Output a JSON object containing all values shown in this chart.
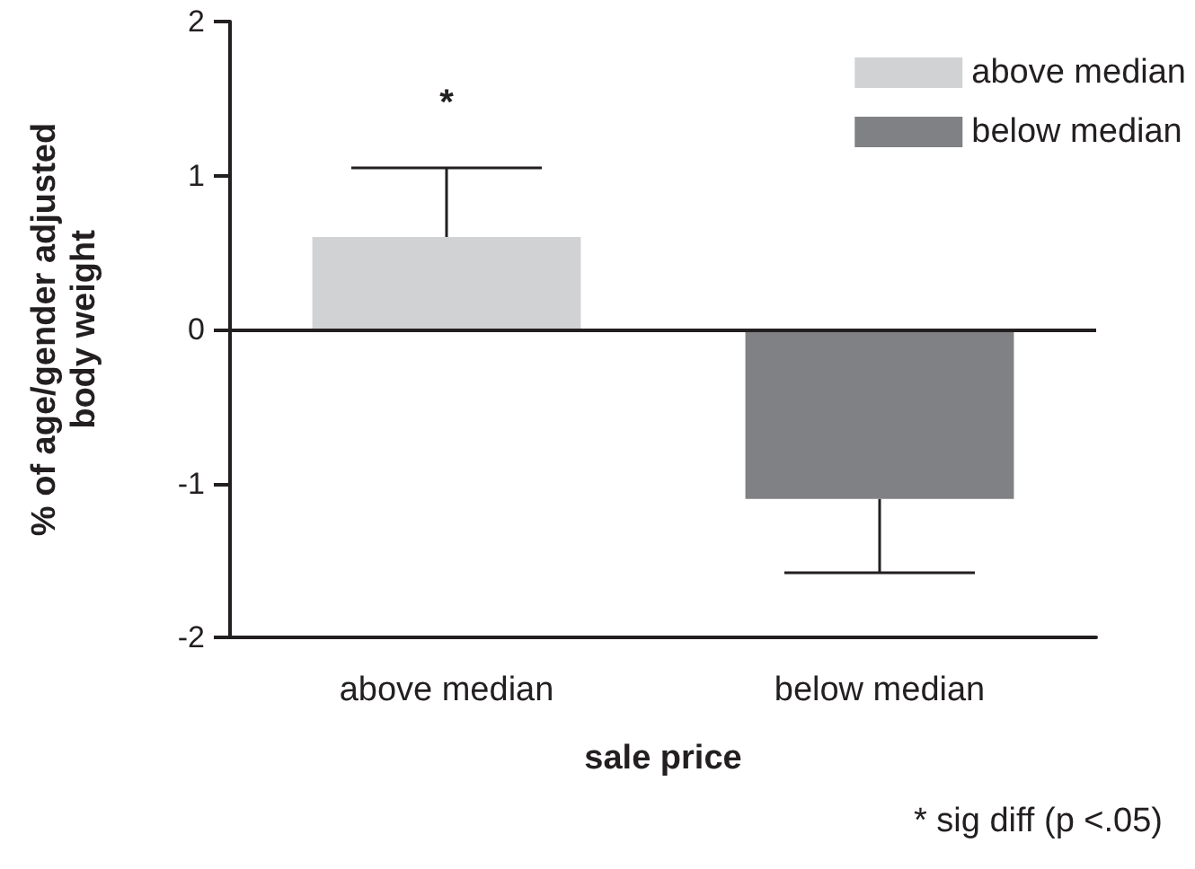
{
  "chart_data": {
    "type": "bar",
    "xlabel": "sale price",
    "ylabel": "% of age/gender adjusted\nbody weight",
    "categories": [
      "above median",
      "below median"
    ],
    "series": [
      {
        "name": "above median",
        "color": "#d1d2d4",
        "values": [
          0.6,
          null
        ],
        "errors": [
          [
            0.6,
            1.05
          ],
          null
        ]
      },
      {
        "name": "below median",
        "color": "#808184",
        "values": [
          null,
          -1.1
        ],
        "errors": [
          null,
          [
            -1.58,
            -1.1
          ]
        ]
      }
    ],
    "ylim": [
      -2,
      2
    ],
    "yticks": [
      -2,
      -1,
      0,
      1,
      2
    ],
    "ref_lines": [
      {
        "axis": "y",
        "value": 0
      }
    ],
    "annotations": [
      "*",
      "* sig diff (p <.05)"
    ],
    "grid": false,
    "legend": "top right"
  }
}
